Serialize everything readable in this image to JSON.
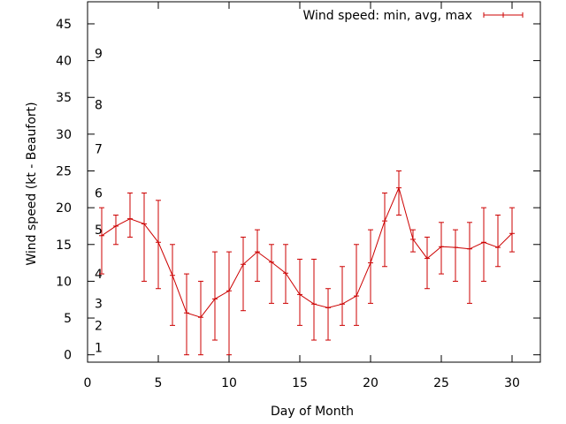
{
  "chart_data": {
    "type": "line",
    "title": "",
    "xlabel": "Day of Month",
    "ylabel": "Wind speed (kt - Beaufort)",
    "xlim": [
      0,
      32
    ],
    "ylim": [
      -1,
      48
    ],
    "x_ticks": [
      0,
      5,
      10,
      15,
      20,
      25,
      30
    ],
    "y_ticks": [
      0,
      5,
      10,
      15,
      20,
      25,
      30,
      35,
      40,
      45
    ],
    "grid": false,
    "legend_position": "top-right",
    "color": "#cc0000",
    "beaufort_labels": [
      {
        "label": "1",
        "y": 1
      },
      {
        "label": "2",
        "y": 4
      },
      {
        "label": "3",
        "y": 7
      },
      {
        "label": "4",
        "y": 11
      },
      {
        "label": "5",
        "y": 17
      },
      {
        "label": "6",
        "y": 22
      },
      {
        "label": "7",
        "y": 28
      },
      {
        "label": "8",
        "y": 34
      },
      {
        "label": "9",
        "y": 41
      }
    ],
    "series": [
      {
        "name": "Wind speed: min, avg, max",
        "x": [
          1,
          2,
          3,
          4,
          5,
          6,
          7,
          8,
          9,
          10,
          11,
          12,
          13,
          14,
          15,
          16,
          17,
          18,
          19,
          20,
          21,
          22,
          23,
          24,
          25,
          26,
          27,
          28,
          29,
          30
        ],
        "avg": [
          16.2,
          17.5,
          18.5,
          17.8,
          15.3,
          10.8,
          5.7,
          5.1,
          7.6,
          8.7,
          12.3,
          14.0,
          12.6,
          11.1,
          8.2,
          6.9,
          6.4,
          6.9,
          8.0,
          12.5,
          18.2,
          22.7,
          15.7,
          13.1,
          14.7,
          14.6,
          14.4,
          15.3,
          14.6,
          16.5
        ],
        "min": [
          11,
          15,
          16,
          10,
          9,
          4,
          0,
          0,
          2,
          0,
          6,
          10,
          7,
          7,
          4,
          2,
          2,
          4,
          4,
          7,
          12,
          19,
          14,
          9,
          11,
          10,
          7,
          10,
          12,
          14
        ],
        "max": [
          20,
          19,
          22,
          22,
          21,
          15,
          11,
          10,
          14,
          14,
          16,
          17,
          15,
          15,
          13,
          13,
          9,
          12,
          15,
          17,
          22,
          25,
          17,
          16,
          18,
          17,
          18,
          20,
          19,
          20
        ]
      }
    ]
  }
}
